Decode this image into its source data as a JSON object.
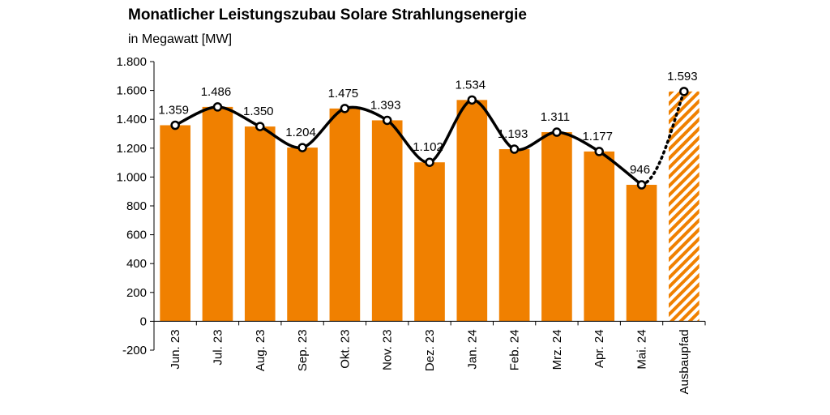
{
  "chart_data": {
    "type": "bar",
    "title": "Monatlicher Leistungszubau Solare Strahlungsenergie",
    "subtitle": "in Megawatt [MW]",
    "categories": [
      "Jun. 23",
      "Jul. 23",
      "Aug. 23",
      "Sep. 23",
      "Okt. 23",
      "Nov. 23",
      "Dez. 23",
      "Jan. 24",
      "Feb. 24",
      "Mrz. 24",
      "Apr. 24",
      "Mai. 24",
      "Ausbaupfad"
    ],
    "values": [
      1359,
      1486,
      1350,
      1204,
      1475,
      1393,
      1102,
      1534,
      1193,
      1311,
      1177,
      946,
      1593
    ],
    "value_labels": [
      "1.359",
      "1.486",
      "1.350",
      "1.204",
      "1.475",
      "1.393",
      "1.102",
      "1.534",
      "1.193",
      "1.311",
      "1.177",
      "946",
      "1.593"
    ],
    "ylim": [
      -200,
      1800
    ],
    "yticks": [
      -200,
      0,
      200,
      400,
      600,
      800,
      1000,
      1200,
      1400,
      1600,
      1800
    ],
    "ytick_labels": [
      "-200",
      "0",
      "200",
      "400",
      "600",
      "800",
      "1.000",
      "1.200",
      "1.400",
      "1.600",
      "1.800"
    ],
    "xlabel": "",
    "ylabel": "",
    "grid": false,
    "overlay_line": "smoothed trend through values, dotted for Ausbaupfad",
    "colors": {
      "bar": "#f08000",
      "target_hatch": "#f08000",
      "line": "#000000",
      "marker_fill": "#ffffff"
    }
  }
}
